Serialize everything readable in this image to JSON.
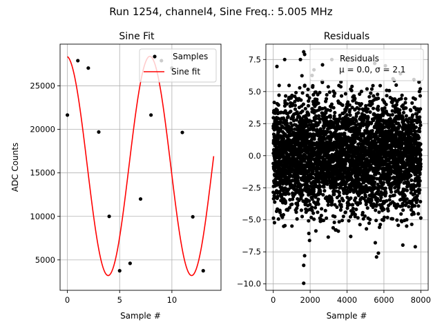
{
  "figure": {
    "suptitle": "Run 1254, channel4, Sine Freq.: 5.005 MHz"
  },
  "chart_data": [
    {
      "type": "line",
      "title": "Sine Fit",
      "xlabel": "Sample #",
      "ylabel": "ADC Counts",
      "xlim": [
        -0.7,
        14.7
      ],
      "ylim": [
        1500,
        29800
      ],
      "xticks": [
        0,
        5,
        10
      ],
      "yticks": [
        5000,
        10000,
        15000,
        20000,
        25000
      ],
      "grid": true,
      "legend_position": "top-right",
      "samples": {
        "name": "Samples",
        "x": [
          0,
          1,
          2,
          3,
          4,
          5,
          6,
          7,
          8,
          9,
          10,
          11,
          12,
          13
        ],
        "y": [
          21650,
          27900,
          27050,
          19700,
          10000,
          3750,
          4600,
          12000,
          21650,
          27900,
          27050,
          19650,
          9950,
          3750
        ]
      },
      "fit": {
        "name": "Sine fit",
        "offset": 15800,
        "amplitude": 12600,
        "period_samples": 7.99,
        "phase_deg": 94.3,
        "x_range": [
          0,
          14
        ]
      }
    },
    {
      "type": "scatter",
      "title": "Residuals",
      "xlabel": "Sample #",
      "xlim": [
        -400,
        8400
      ],
      "ylim": [
        -10.5,
        8.7
      ],
      "xticks": [
        0,
        2000,
        4000,
        6000,
        8000
      ],
      "yticks": [
        -10.0,
        -7.5,
        -5.0,
        -2.5,
        0.0,
        2.5,
        5.0,
        7.5
      ],
      "ytick_labels": [
        "−10.0",
        "−7.5",
        "−5.0",
        "−2.5",
        "0.0",
        "2.5",
        "5.0",
        "7.5"
      ],
      "grid": true,
      "legend_position": "top-right",
      "series": [
        {
          "name": "Residuals",
          "mean": 0.0,
          "std": 2.1,
          "n_points": 8000
        }
      ],
      "legend_label_line1": "Residuals",
      "legend_label_line2": "μ = 0.0, σ = 2.1",
      "notable_points": {
        "x": [
          1650,
          1650,
          1700,
          1650,
          1700,
          5600,
          5700,
          5500,
          4200,
          6900
        ],
        "y": [
          -9.95,
          -8.55,
          -7.8,
          8.1,
          7.9,
          -7.9,
          -7.6,
          7.2,
          -6.3,
          6.4
        ]
      }
    }
  ],
  "colors": {
    "fit_line": "#ff0000",
    "points": "#000000",
    "grid": "#b0b0b0"
  }
}
